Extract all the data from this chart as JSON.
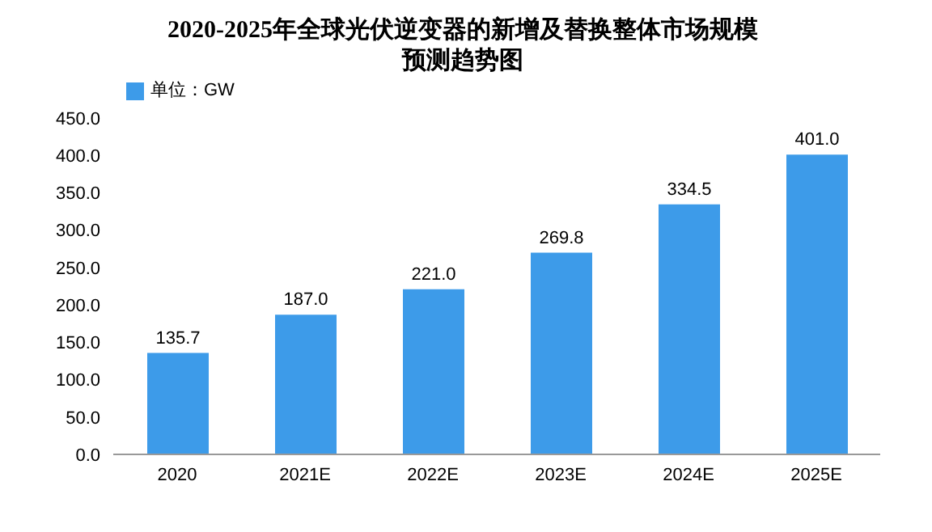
{
  "chart_data": {
    "type": "bar",
    "title": "2020-2025年全球光伏逆变器的新增及替换整体市场规模预测趋势图",
    "categories": [
      "2020",
      "2021E",
      "2022E",
      "2023E",
      "2024E",
      "2025E"
    ],
    "series": [
      {
        "name": "单位：GW",
        "color": "#3d9be9",
        "values": [
          135.7,
          187.0,
          221.0,
          269.8,
          334.5,
          401.0
        ],
        "value_labels": [
          "135.7",
          "187.0",
          "221.0",
          "269.8",
          "334.5",
          "401.0"
        ]
      }
    ],
    "ylim": [
      0,
      450
    ],
    "yticks": [
      {
        "value": 0,
        "label": "0.0"
      },
      {
        "value": 50,
        "label": "50.0"
      },
      {
        "value": 100,
        "label": "100.0"
      },
      {
        "value": 150,
        "label": "150.0"
      },
      {
        "value": 200,
        "label": "200.0"
      },
      {
        "value": 250,
        "label": "250.0"
      },
      {
        "value": 300,
        "label": "300.0"
      },
      {
        "value": 350,
        "label": "350.0"
      },
      {
        "value": 400,
        "label": "400.0"
      },
      {
        "value": 450,
        "label": "450.0"
      }
    ],
    "legend": "top left",
    "grid": false
  }
}
